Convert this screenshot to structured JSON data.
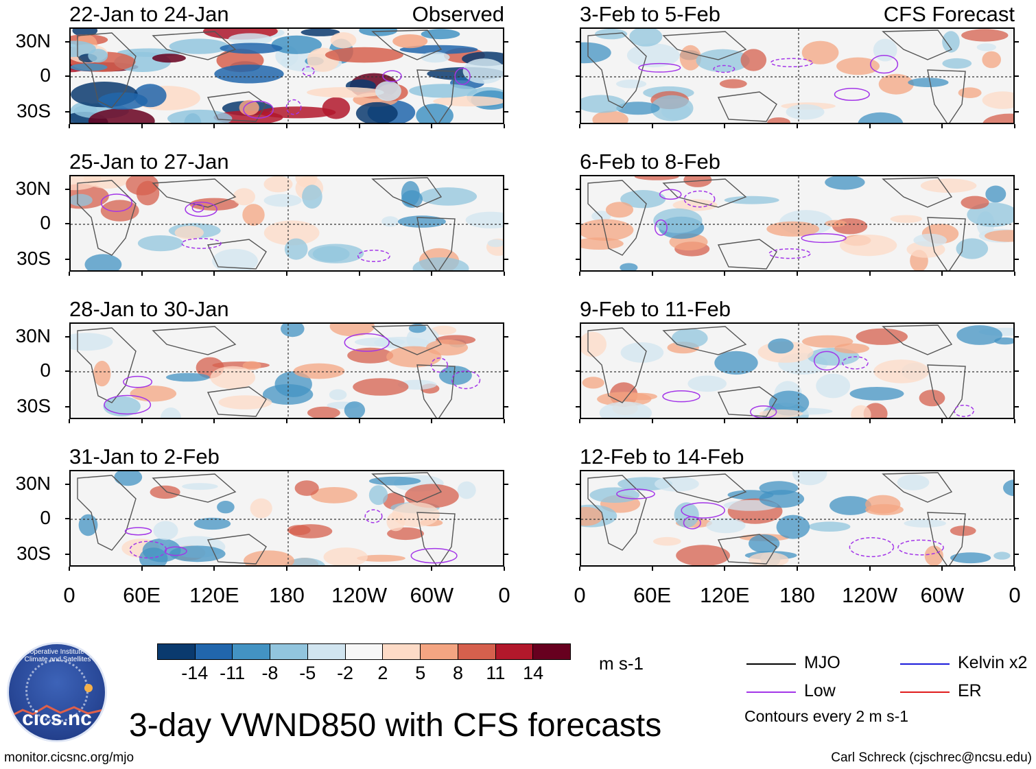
{
  "panels": [
    {
      "title": "22-Jan to 24-Jan",
      "label": "Observed",
      "column": "left",
      "row": 0
    },
    {
      "title": "25-Jan to 27-Jan",
      "label": "",
      "column": "left",
      "row": 1
    },
    {
      "title": "28-Jan to 30-Jan",
      "label": "",
      "column": "left",
      "row": 2
    },
    {
      "title": "31-Jan to 2-Feb",
      "label": "",
      "column": "left",
      "row": 3
    },
    {
      "title": "3-Feb to 5-Feb",
      "label": "CFS Forecast",
      "column": "right",
      "row": 0
    },
    {
      "title": "6-Feb to 8-Feb",
      "label": "",
      "column": "right",
      "row": 1
    },
    {
      "title": "9-Feb to 11-Feb",
      "label": "",
      "column": "right",
      "row": 2
    },
    {
      "title": "12-Feb to 14-Feb",
      "label": "",
      "column": "right",
      "row": 3
    }
  ],
  "lat_labels": [
    "30N",
    "0",
    "30S"
  ],
  "lon_labels": [
    "0",
    "60E",
    "120E",
    "180",
    "120W",
    "60W",
    "0"
  ],
  "colorbar": {
    "colors": [
      "#0a3a6e",
      "#2166ac",
      "#4393c3",
      "#92c5de",
      "#d1e5f0",
      "#f7f7f7",
      "#fddbc7",
      "#f4a582",
      "#d6604d",
      "#b2182b",
      "#67001f"
    ],
    "labels": [
      "-14",
      "-11",
      "-8",
      "-5",
      "-2",
      "2",
      "5",
      "8",
      "11",
      "14"
    ],
    "units": "m s-1"
  },
  "legend": [
    {
      "name": "MJO",
      "color": "#000000"
    },
    {
      "name": "Kelvin x2",
      "color": "#1a1adb"
    },
    {
      "name": "Low",
      "color": "#a335e8"
    },
    {
      "name": "ER",
      "color": "#e01b1b"
    }
  ],
  "contour_note": "Contours every 2 m s-1",
  "title": "3-day VWND850 with CFS forecasts",
  "footer_left": "monitor.cicsnc.org/mjo",
  "footer_right": "Carl Schreck (cjschrec@ncsu.edu)",
  "logo": {
    "name": "cics.nc",
    "arc": "Cooperative Institute for Climate and Satellites"
  }
}
